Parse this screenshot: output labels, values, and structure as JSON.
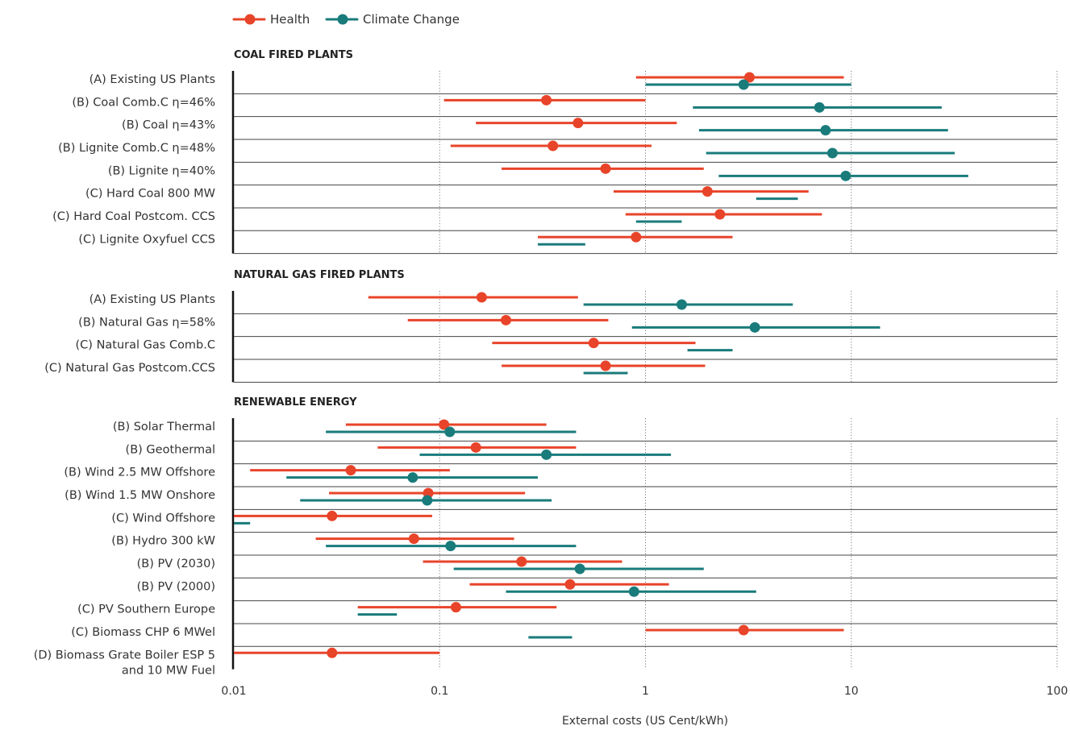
{
  "chart_data": {
    "type": "range",
    "xlabel": "External costs (US Cent/kWh)",
    "xscale": "log",
    "xlim": [
      0.01,
      100
    ],
    "xticks": [
      "0.01",
      "0.1",
      "1",
      "10",
      "100"
    ],
    "xtick_values": [
      0.01,
      0.1,
      1,
      10,
      100
    ],
    "legend": {
      "placement": "top-left",
      "entries": [
        {
          "name": "Health",
          "color": "#e8442a"
        },
        {
          "name": "Climate Change",
          "color": "#1a7b7b"
        }
      ]
    },
    "colors": {
      "health": "#e8442a",
      "climate": "#1a7b7b"
    },
    "sections": [
      {
        "title": "COAL FIRED PLANTS",
        "rows": [
          {
            "label": "(A) Existing US Plants",
            "health": {
              "low": 0.9,
              "mid": 3.2,
              "high": 9.2
            },
            "climate": {
              "low": 1.0,
              "mid": 3.0,
              "high": 10.0
            }
          },
          {
            "label": "(B) Coal Comb.C η=46%",
            "health": {
              "low": 0.105,
              "mid": 0.33,
              "high": 1.0
            },
            "climate": {
              "low": 1.7,
              "mid": 7.0,
              "high": 27.5
            }
          },
          {
            "label": "(B) Coal η=43%",
            "health": {
              "low": 0.15,
              "mid": 0.47,
              "high": 1.42
            },
            "climate": {
              "low": 1.82,
              "mid": 7.5,
              "high": 29.5
            }
          },
          {
            "label": "(B) Lignite Comb.C η=48%",
            "health": {
              "low": 0.113,
              "mid": 0.355,
              "high": 1.07
            },
            "climate": {
              "low": 1.97,
              "mid": 8.1,
              "high": 31.8
            }
          },
          {
            "label": "(B) Lignite η=40%",
            "health": {
              "low": 0.2,
              "mid": 0.64,
              "high": 1.92
            },
            "climate": {
              "low": 2.27,
              "mid": 9.4,
              "high": 37.0
            }
          },
          {
            "label": "(C) Hard Coal 800 MW",
            "health": {
              "low": 0.7,
              "mid": 2.0,
              "high": 6.2
            },
            "climate": {
              "low": 3.45,
              "high": 5.5
            }
          },
          {
            "label": "(C) Hard Coal Postcom. CCS",
            "health": {
              "low": 0.8,
              "mid": 2.3,
              "high": 7.2
            },
            "climate": {
              "low": 0.9,
              "high": 1.5
            }
          },
          {
            "label": "(C) Lignite Oxyfuel CCS",
            "health": {
              "low": 0.3,
              "mid": 0.9,
              "high": 2.65
            },
            "climate": {
              "low": 0.3,
              "high": 0.51
            }
          }
        ]
      },
      {
        "title": "NATURAL GAS FIRED PLANTS",
        "rows": [
          {
            "label": "(A) Existing US Plants",
            "health": {
              "low": 0.045,
              "mid": 0.16,
              "high": 0.47
            },
            "climate": {
              "low": 0.5,
              "mid": 1.5,
              "high": 5.2
            }
          },
          {
            "label": "(B) Natural Gas η=58%",
            "health": {
              "low": 0.07,
              "mid": 0.21,
              "high": 0.66
            },
            "climate": {
              "low": 0.86,
              "mid": 3.4,
              "high": 13.8
            }
          },
          {
            "label": "(C) Natural Gas Comb.C",
            "health": {
              "low": 0.18,
              "mid": 0.56,
              "high": 1.75
            },
            "climate": {
              "low": 1.6,
              "high": 2.65
            }
          },
          {
            "label": "(C) Natural Gas Postcom.CCS",
            "health": {
              "low": 0.2,
              "mid": 0.64,
              "high": 1.95
            },
            "climate": {
              "low": 0.5,
              "high": 0.82
            }
          }
        ]
      },
      {
        "title": "RENEWABLE ENERGY",
        "rows": [
          {
            "label": "(B) Solar Thermal",
            "health": {
              "low": 0.035,
              "mid": 0.105,
              "high": 0.33
            },
            "climate": {
              "low": 0.028,
              "mid": 0.112,
              "high": 0.46
            }
          },
          {
            "label": "(B) Geothermal",
            "health": {
              "low": 0.05,
              "mid": 0.15,
              "high": 0.46
            },
            "climate": {
              "low": 0.08,
              "mid": 0.33,
              "high": 1.33
            }
          },
          {
            "label": "(B) Wind 2.5 MW Offshore",
            "health": {
              "low": 0.012,
              "mid": 0.037,
              "high": 0.112
            },
            "climate": {
              "low": 0.018,
              "mid": 0.074,
              "high": 0.3
            }
          },
          {
            "label": "(B) Wind 1.5 MW Onshore",
            "health": {
              "low": 0.029,
              "mid": 0.088,
              "high": 0.26
            },
            "climate": {
              "low": 0.021,
              "mid": 0.087,
              "high": 0.35
            }
          },
          {
            "label": "(C) Wind Offshore",
            "health": {
              "low": 0.01,
              "mid": 0.03,
              "high": 0.092
            },
            "climate": {
              "low": 0.01,
              "high": 0.012
            }
          },
          {
            "label": "(B) Hydro 300 kW",
            "health": {
              "low": 0.025,
              "mid": 0.075,
              "high": 0.23
            },
            "climate": {
              "low": 0.028,
              "mid": 0.113,
              "high": 0.46
            }
          },
          {
            "label": "(B) PV (2030)",
            "health": {
              "low": 0.083,
              "mid": 0.25,
              "high": 0.77
            },
            "climate": {
              "low": 0.117,
              "mid": 0.48,
              "high": 1.92
            }
          },
          {
            "label": "(B) PV (2000)",
            "health": {
              "low": 0.14,
              "mid": 0.43,
              "high": 1.3
            },
            "climate": {
              "low": 0.21,
              "mid": 0.88,
              "high": 3.45
            }
          },
          {
            "label": "(C) PV Southern Europe",
            "health": {
              "low": 0.04,
              "mid": 0.12,
              "high": 0.37
            },
            "climate": {
              "low": 0.04,
              "high": 0.062
            }
          },
          {
            "label": "(C) Biomass CHP 6 MWel",
            "health": {
              "low": 1.0,
              "mid": 3.0,
              "high": 9.2
            },
            "climate": {
              "low": 0.27,
              "high": 0.44
            }
          },
          {
            "label": "(D) Biomass Grate Boiler ESP 5 and 10 MW Fuel",
            "label_lines": [
              "(D) Biomass Grate Boiler ESP 5",
              "and 10 MW Fuel"
            ],
            "health": {
              "low": 0.01,
              "mid": 0.03,
              "high": 0.1
            }
          }
        ]
      }
    ]
  }
}
